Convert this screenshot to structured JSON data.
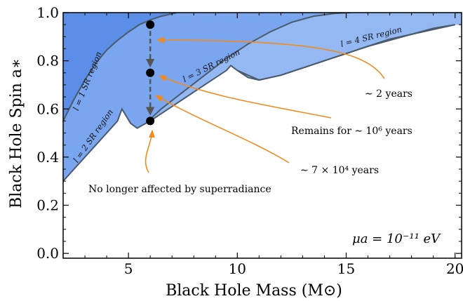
{
  "chart_data": {
    "type": "area",
    "xlabel": "Black Hole Mass (M⊙)",
    "ylabel": "Black Hole Spin a∗",
    "xlim": [
      2,
      20.3
    ],
    "ylim": [
      -0.02,
      1.0
    ],
    "x_ticks": [
      5,
      10,
      15,
      20
    ],
    "x_tick_labels": [
      "5",
      "10",
      "15",
      "20"
    ],
    "y_ticks": [
      0.0,
      0.2,
      0.4,
      0.6,
      0.8,
      1.0
    ],
    "y_tick_labels": [
      "0.0",
      "0.2",
      "0.4",
      "0.6",
      "0.8",
      "1.0"
    ],
    "grid": false,
    "parameter_label": "μa = 10⁻¹¹ eV",
    "regions": [
      {
        "name": "l = 1 SR region",
        "color": "#5b8ee6",
        "boundary": [
          [
            2.0,
            0.55
          ],
          [
            2.5,
            0.64
          ],
          [
            3.0,
            0.72
          ],
          [
            3.5,
            0.79
          ],
          [
            4.0,
            0.845
          ],
          [
            4.5,
            0.885
          ],
          [
            5.0,
            0.92
          ],
          [
            5.5,
            0.95
          ],
          [
            6.0,
            0.97
          ],
          [
            6.5,
            0.985
          ],
          [
            7.0,
            0.995
          ],
          [
            7.2,
            0.999
          ]
        ]
      },
      {
        "name": "l = 2 SR region",
        "color": "#7aa6ef",
        "boundary": [
          [
            2.0,
            0.3
          ],
          [
            2.5,
            0.35
          ],
          [
            3.0,
            0.4
          ],
          [
            3.5,
            0.45
          ],
          [
            4.0,
            0.5
          ],
          [
            4.5,
            0.55
          ],
          [
            4.7,
            0.6
          ],
          [
            4.9,
            0.57
          ],
          [
            5.1,
            0.54
          ],
          [
            5.4,
            0.52
          ],
          [
            5.8,
            0.54
          ],
          [
            6.5,
            0.6
          ],
          [
            7.5,
            0.67
          ],
          [
            8.5,
            0.74
          ],
          [
            9.5,
            0.81
          ],
          [
            10.5,
            0.87
          ],
          [
            11.5,
            0.92
          ],
          [
            12.5,
            0.96
          ],
          [
            13.5,
            0.985
          ],
          [
            14.5,
            0.997
          ],
          [
            15.2,
            1.0
          ]
        ]
      },
      {
        "name": "l = 3 SR region",
        "color": "#93b8f2",
        "boundary": [
          [
            6.0,
            0.55
          ],
          [
            6.5,
            0.58
          ],
          [
            7.5,
            0.64
          ],
          [
            8.5,
            0.7
          ],
          [
            9.5,
            0.76
          ],
          [
            9.7,
            0.78
          ],
          [
            10.0,
            0.76
          ],
          [
            10.5,
            0.73
          ],
          [
            11.0,
            0.72
          ],
          [
            12.0,
            0.74
          ],
          [
            13.0,
            0.77
          ],
          [
            14.0,
            0.8
          ],
          [
            15.0,
            0.83
          ],
          [
            16.0,
            0.86
          ],
          [
            17.0,
            0.89
          ],
          [
            18.0,
            0.91
          ],
          [
            19.0,
            0.935
          ],
          [
            20.0,
            0.95
          ]
        ]
      },
      {
        "name": "l = 4 SR region",
        "color": "#b9d0f7",
        "boundary": [
          [
            10.0,
            0.76
          ],
          [
            11.0,
            0.72
          ],
          [
            12.0,
            0.74
          ],
          [
            14.0,
            0.8
          ],
          [
            16.0,
            0.86
          ],
          [
            18.0,
            0.91
          ],
          [
            20.0,
            0.95
          ]
        ]
      }
    ],
    "evolution_points": [
      {
        "x": 6.0,
        "y": 0.95
      },
      {
        "x": 6.0,
        "y": 0.75
      },
      {
        "x": 6.0,
        "y": 0.55
      }
    ],
    "annotations": [
      {
        "text": "∼ 2 years"
      },
      {
        "text": "Remains for ∼ 10⁶ years"
      },
      {
        "text": "∼ 7 × 10⁴ years"
      },
      {
        "text": "No longer affected by superradiance"
      }
    ],
    "colors": {
      "arrow": "#f28a1e",
      "dashed": "#555555",
      "outline": "#4a5a6a"
    }
  }
}
